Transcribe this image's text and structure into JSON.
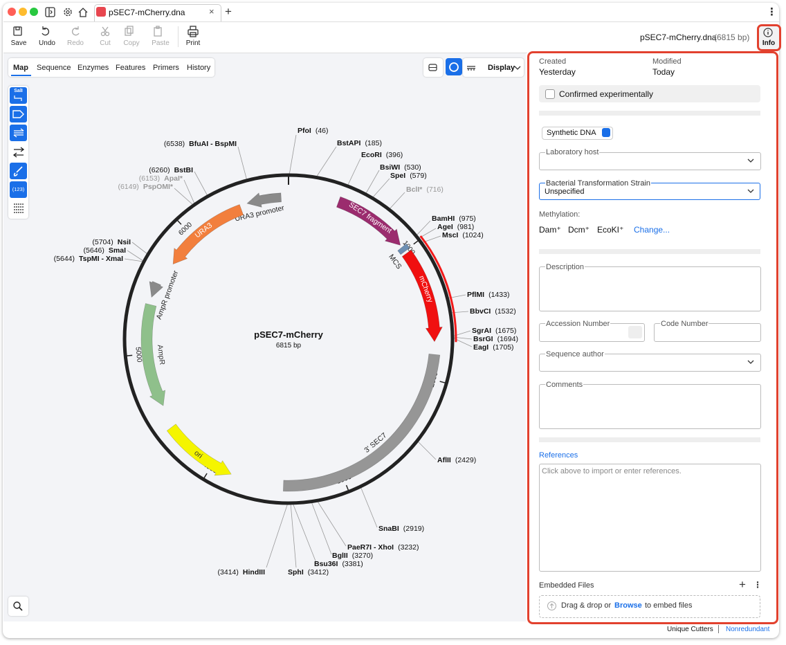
{
  "window": {
    "tab_title": "pSEC7-mCherry.dna"
  },
  "toolbar": {
    "buttons": [
      "Save",
      "Undo",
      "Redo",
      "Cut",
      "Copy",
      "Paste",
      "Print"
    ],
    "file_name": "pSEC7-mCherry.dna",
    "file_size": "(6815 bp)",
    "info": "Info"
  },
  "view_tabs": [
    "Map",
    "Sequence",
    "Enzymes",
    "Features",
    "Primers",
    "History"
  ],
  "display_menu": "Display",
  "tools": {
    "enzyme_tool": "SalI",
    "numbering_tool": "(123)"
  },
  "map": {
    "name": "pSEC7-mCherry",
    "length": "6815 bp",
    "ticks": [
      "1000",
      "2000",
      "3000",
      "4000",
      "5000",
      "6000"
    ],
    "features": [
      "URA3 promoter",
      "URA3",
      "SEC7 fragment",
      "MCS",
      "mCherry",
      "AmpR promoter",
      "AmpR",
      "ori",
      "3' SEC7"
    ],
    "enzymes": [
      {
        "name": "PfoI",
        "site": "(46)"
      },
      {
        "name": "BstAPI",
        "site": "(185)"
      },
      {
        "name": "EcoRI",
        "site": "(396)"
      },
      {
        "name": "BsiWI",
        "site": "(530)"
      },
      {
        "name": "SpeI",
        "site": "(579)"
      },
      {
        "name": "BclI*",
        "site": "(716)"
      },
      {
        "name": "BamHI",
        "site": "(975)"
      },
      {
        "name": "AgeI",
        "site": "(981)"
      },
      {
        "name": "MscI",
        "site": "(1024)"
      },
      {
        "name": "PflMI",
        "site": "(1433)"
      },
      {
        "name": "BbvCI",
        "site": "(1532)"
      },
      {
        "name": "SgrAI",
        "site": "(1675)"
      },
      {
        "name": "BsrGI",
        "site": "(1694)"
      },
      {
        "name": "EagI",
        "site": "(1705)"
      },
      {
        "name": "AflII",
        "site": "(2429)"
      },
      {
        "name": "SnaBI",
        "site": "(2919)"
      },
      {
        "name": "PaeR7I - XhoI",
        "site": "(3232)"
      },
      {
        "name": "BglII",
        "site": "(3270)"
      },
      {
        "name": "Bsu36I",
        "site": "(3381)"
      },
      {
        "name": "SphI",
        "site": "(3412)"
      },
      {
        "name": "HindIII",
        "site": "(3414)"
      },
      {
        "name": "TspMI - XmaI",
        "site": "(5644)"
      },
      {
        "name": "SmaI",
        "site": "(5646)"
      },
      {
        "name": "NsiI",
        "site": "(5704)"
      },
      {
        "name": "PspOMI*",
        "site": "(6149)"
      },
      {
        "name": "ApaI*",
        "site": "(6153)"
      },
      {
        "name": "BstBI",
        "site": "(6260)"
      },
      {
        "name": "BfuAI - BspMI",
        "site": "(6538)"
      }
    ]
  },
  "info_panel": {
    "created_label": "Created",
    "created": "Yesterday",
    "modified_label": "Modified",
    "modified": "Today",
    "confirmed": "Confirmed experimentally",
    "molecule_type": "Synthetic DNA",
    "lab_host_label": "Laboratory host",
    "strain_label": "Bacterial Transformation Strain",
    "strain": "Unspecified",
    "methylation_label": "Methylation:",
    "methylation": [
      "Dam⁺",
      "Dcm⁺",
      "EcoKI⁺"
    ],
    "change": "Change...",
    "description_label": "Description",
    "accession_label": "Accession Number",
    "code_label": "Code Number",
    "author_label": "Sequence author",
    "comments_label": "Comments",
    "references": "References",
    "references_placeholder": "Click above to import or enter references.",
    "embedded_files": "Embedded Files",
    "drop_text": "Drag & drop or",
    "browse": "Browse",
    "drop_suffix": "to embed files"
  },
  "footer": {
    "unique_cutters": "Unique Cutters",
    "nonredundant": "Nonredundant"
  }
}
